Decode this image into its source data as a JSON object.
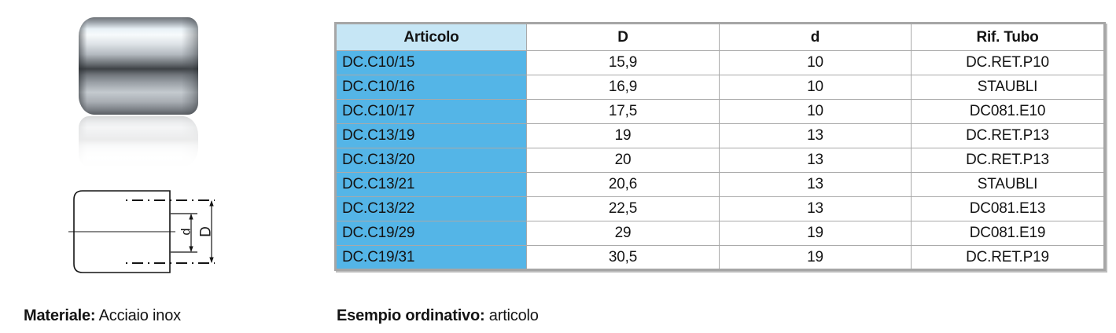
{
  "table": {
    "headers": [
      "Articolo",
      "D",
      "d",
      "Rif. Tubo"
    ],
    "rows": [
      [
        "DC.C10/15",
        "15,9",
        "10",
        "DC.RET.P10"
      ],
      [
        "DC.C10/16",
        "16,9",
        "10",
        "STAUBLI"
      ],
      [
        "DC.C10/17",
        "17,5",
        "10",
        "DC081.E10"
      ],
      [
        "DC.C13/19",
        "19",
        "13",
        "DC.RET.P13"
      ],
      [
        "DC.C13/20",
        "20",
        "13",
        "DC.RET.P13"
      ],
      [
        "DC.C13/21",
        "20,6",
        "13",
        "STAUBLI"
      ],
      [
        "DC.C13/22",
        "22,5",
        "13",
        "DC081.E13"
      ],
      [
        "DC.C19/29",
        "29",
        "19",
        "DC081.E19"
      ],
      [
        "DC.C19/31",
        "30,5",
        "19",
        "DC.RET.P19"
      ]
    ]
  },
  "diagram": {
    "inner_diameter_label": "d",
    "outer_diameter_label": "D"
  },
  "captions": {
    "material_label": "Materiale:",
    "material_value": " Acciaio inox",
    "order_label": "Esempio ordinativo:",
    "order_value": " articolo"
  },
  "colors": {
    "header_blue": "#c6e6f5",
    "cell_blue": "#54b5e7",
    "grid_gray": "#a9a9a9",
    "frame_gray": "#a6a6a6"
  }
}
